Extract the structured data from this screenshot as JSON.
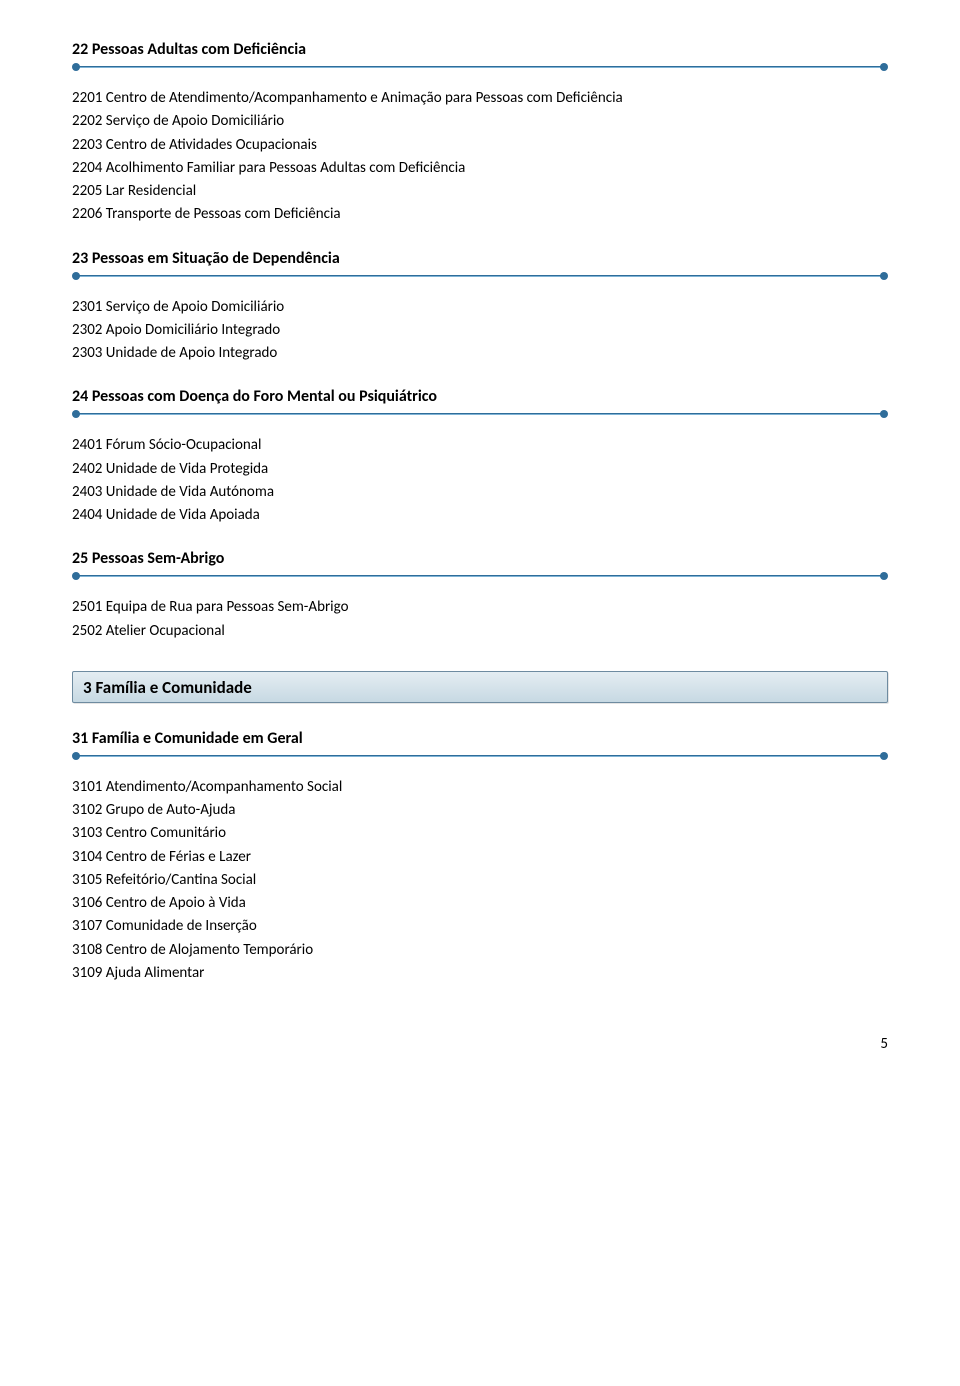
{
  "page_number": "5",
  "colors": {
    "accent": "#2f6d9a",
    "box_border": "#6e8ba0",
    "box_bg_top": "#e4edf2",
    "box_bg_bottom": "#c7d9e3",
    "text": "#000000",
    "background": "#ffffff"
  },
  "typography": {
    "font_family": "Calibri",
    "heading_size_pt": 12,
    "item_size_pt": 11,
    "heading_weight": "bold"
  },
  "sections": {
    "s22": {
      "title": "22 Pessoas Adultas com Deficiência",
      "items": [
        "2201 Centro de Atendimento/Acompanhamento e Animação para Pessoas com Deficiência",
        "2202 Serviço de Apoio Domiciliário",
        "2203 Centro de Atividades Ocupacionais",
        "2204 Acolhimento Familiar para Pessoas Adultas com Deficiência",
        "2205 Lar Residencial",
        "2206 Transporte de Pessoas com Deficiência"
      ]
    },
    "s23": {
      "title": "23 Pessoas em Situação de Dependência",
      "items": [
        "2301 Serviço de Apoio Domiciliário",
        "2302 Apoio Domiciliário Integrado",
        "2303 Unidade de Apoio Integrado"
      ]
    },
    "s24": {
      "title": "24 Pessoas com Doença do Foro Mental ou Psiquiátrico",
      "items": [
        "2401 Fórum Sócio-Ocupacional",
        "2402 Unidade de Vida Protegida",
        "2403 Unidade de Vida Autónoma",
        "2404 Unidade de Vida Apoiada"
      ]
    },
    "s25": {
      "title": "25 Pessoas Sem-Abrigo",
      "items": [
        "2501 Equipa de Rua para Pessoas Sem-Abrigo",
        "2502 Atelier Ocupacional"
      ]
    },
    "box3": {
      "title": "3 Família e Comunidade"
    },
    "s31": {
      "title": "31 Família e Comunidade em Geral",
      "items": [
        "3101 Atendimento/Acompanhamento Social",
        "3102 Grupo de Auto-Ajuda",
        "3103 Centro Comunitário",
        "3104 Centro de Férias e Lazer",
        "3105 Refeitório/Cantina Social",
        "3106 Centro de Apoio à Vida",
        "3107 Comunidade de Inserção",
        "3108 Centro de Alojamento Temporário",
        "3109 Ajuda Alimentar"
      ]
    }
  }
}
